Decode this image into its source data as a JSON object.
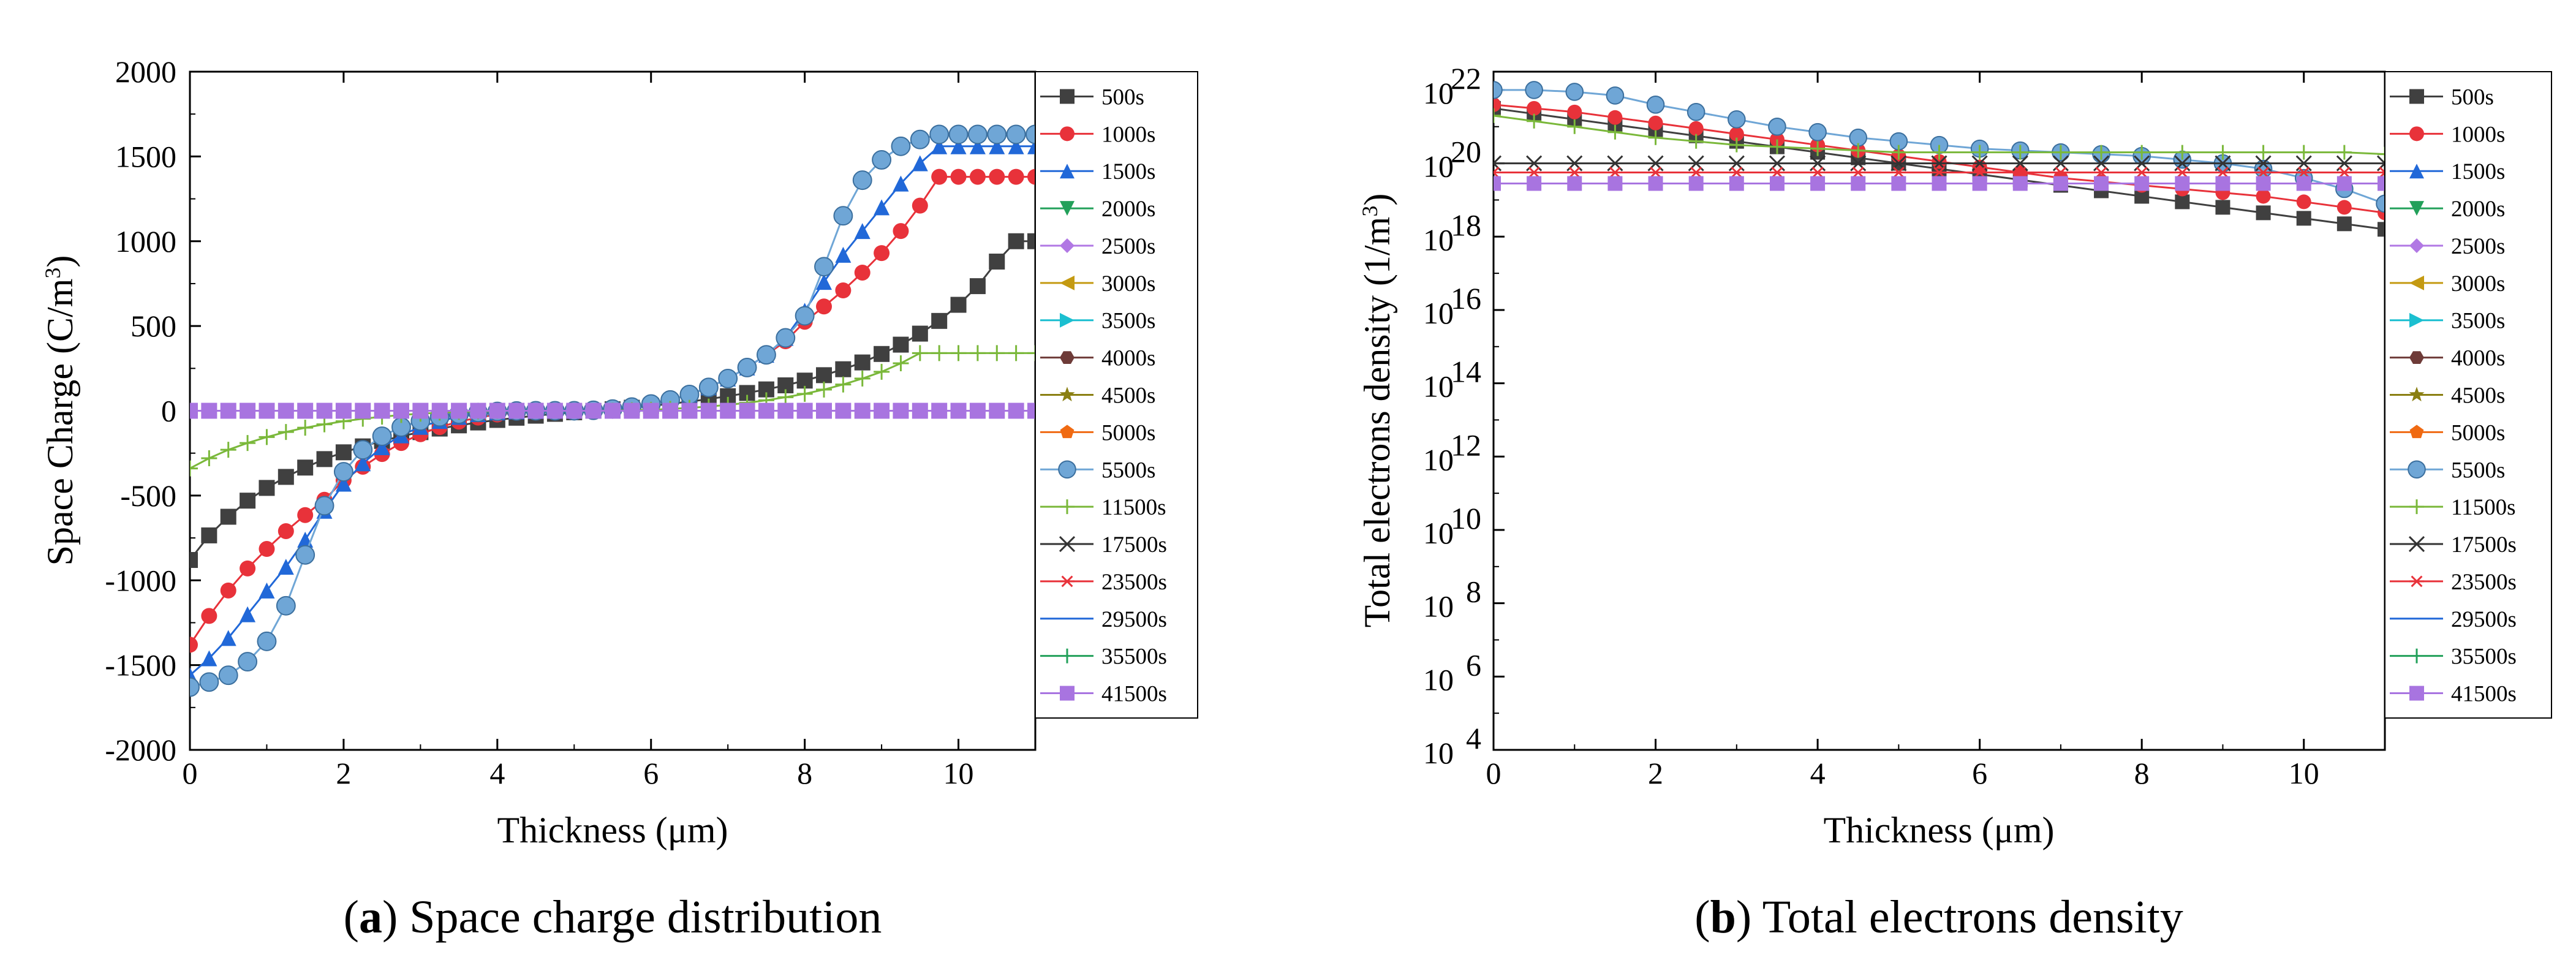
{
  "figure": {
    "panels": [
      {
        "id": "a",
        "caption_letter": "a",
        "caption_text": "Space charge distribution",
        "xlabel": "Thickness (μm)",
        "ylabel_main": "Space Charge (C/m",
        "ylabel_sup": "3",
        "ylabel_close": ")"
      },
      {
        "id": "b",
        "caption_letter": "b",
        "caption_text": "Total electrons density",
        "xlabel": "Thickness (μm)",
        "ylabel_main": "Total electrons density (1/m",
        "ylabel_sup": "3",
        "ylabel_close": ")"
      }
    ]
  },
  "series_styles": [
    {
      "name": "500s",
      "color": "#404040",
      "marker": "square"
    },
    {
      "name": "1000s",
      "color": "#e8323a",
      "marker": "circle"
    },
    {
      "name": "1500s",
      "color": "#2168d8",
      "marker": "triangle-up"
    },
    {
      "name": "2000s",
      "color": "#22a05a",
      "marker": "triangle-down"
    },
    {
      "name": "2500s",
      "color": "#b178e4",
      "marker": "diamond"
    },
    {
      "name": "3000s",
      "color": "#c49a12",
      "marker": "triangle-left"
    },
    {
      "name": "3500s",
      "color": "#1bbfd0",
      "marker": "triangle-right"
    },
    {
      "name": "4000s",
      "color": "#6e3b38",
      "marker": "hexagon"
    },
    {
      "name": "4500s",
      "color": "#8a7f12",
      "marker": "star"
    },
    {
      "name": "5000s",
      "color": "#f06a12",
      "marker": "pentagon"
    },
    {
      "name": "5500s",
      "color": "#6fa6d6",
      "marker": "sphere"
    },
    {
      "name": "11500s",
      "color": "#7ab83a",
      "marker": "plus"
    },
    {
      "name": "17500s",
      "color": "#333333",
      "marker": "x"
    },
    {
      "name": "23500s",
      "color": "#e8323a",
      "marker": "asterisk"
    },
    {
      "name": "29500s",
      "color": "#2168d8",
      "marker": "dash"
    },
    {
      "name": "35500s",
      "color": "#22a05a",
      "marker": "bar"
    },
    {
      "name": "41500s",
      "color": "#a874e0",
      "marker": "square"
    }
  ],
  "chart_data": [
    {
      "type": "line",
      "panel": "a",
      "title": "Space charge distribution",
      "xlabel": "Thickness (μm)",
      "ylabel": "Space Charge (C/m3)",
      "xlim": [
        0,
        11
      ],
      "ylim": [
        -2000,
        2000
      ],
      "xticks": [
        0,
        2,
        4,
        6,
        8,
        10
      ],
      "yticks": [
        2000,
        1500,
        1000,
        500,
        0,
        -500,
        -1000,
        -1500,
        -2000
      ],
      "ytick_labels": [
        "2000",
        "1500",
        "1000",
        "500",
        "0",
        "-500",
        "-1000",
        "-1500",
        "-2000"
      ],
      "x": [
        0,
        0.25,
        0.5,
        0.75,
        1,
        1.25,
        1.5,
        1.75,
        2,
        2.25,
        2.5,
        2.75,
        3,
        3.25,
        3.5,
        3.75,
        4,
        4.25,
        4.5,
        4.75,
        5,
        5.25,
        5.5,
        5.75,
        6,
        6.25,
        6.5,
        6.75,
        7,
        7.25,
        7.5,
        7.75,
        8,
        8.25,
        8.5,
        8.75,
        9,
        9.25,
        9.5,
        9.75,
        10,
        10.25,
        10.5,
        10.75,
        11
      ],
      "series": [
        {
          "name": "500s",
          "values": [
            -880,
            -735,
            -625,
            -530,
            -455,
            -390,
            -335,
            -285,
            -245,
            -210,
            -178,
            -150,
            -126,
            -105,
            -86,
            -69,
            -54,
            -41,
            -29,
            -18,
            -9,
            0,
            9,
            18,
            29,
            41,
            54,
            69,
            86,
            105,
            126,
            150,
            178,
            210,
            245,
            285,
            335,
            390,
            455,
            530,
            625,
            735,
            880,
            1000,
            1000
          ]
        },
        {
          "name": "1000s",
          "values": [
            -1380,
            -1210,
            -1060,
            -930,
            -815,
            -710,
            -615,
            -525,
            -410,
            -330,
            -255,
            -190,
            -138,
            -96,
            -64,
            -40,
            -22,
            -10,
            -4,
            -1,
            0,
            3,
            10,
            22,
            40,
            64,
            96,
            138,
            190,
            255,
            330,
            410,
            525,
            615,
            710,
            815,
            930,
            1060,
            1210,
            1380,
            1380,
            1380,
            1380,
            1380,
            1380
          ]
        },
        {
          "name": "1500s",
          "values": [
            -1560,
            -1460,
            -1340,
            -1200,
            -1060,
            -920,
            -760,
            -590,
            -430,
            -310,
            -215,
            -145,
            -95,
            -60,
            -36,
            -20,
            -10,
            -4,
            -1,
            0,
            0,
            3,
            10,
            22,
            40,
            64,
            96,
            138,
            190,
            255,
            330,
            430,
            590,
            760,
            920,
            1060,
            1200,
            1340,
            1460,
            1560,
            1560,
            1560,
            1560,
            1560,
            1560
          ]
        },
        {
          "name": "5500s",
          "values": [
            -1630,
            -1600,
            -1560,
            -1480,
            -1360,
            -1150,
            -850,
            -560,
            -360,
            -230,
            -150,
            -96,
            -60,
            -36,
            -20,
            -10,
            -4,
            -1,
            0,
            0,
            0,
            3,
            10,
            22,
            40,
            64,
            96,
            138,
            190,
            255,
            330,
            430,
            560,
            850,
            1150,
            1360,
            1480,
            1560,
            1600,
            1630,
            1630,
            1630,
            1630,
            1630,
            1630
          ]
        },
        {
          "name": "11500s",
          "values": [
            -340,
            -280,
            -230,
            -190,
            -155,
            -125,
            -100,
            -80,
            -62,
            -47,
            -35,
            -25,
            -17,
            -11,
            -6,
            -3,
            -1,
            0,
            0,
            0,
            0,
            0,
            1,
            3,
            6,
            11,
            17,
            25,
            35,
            47,
            62,
            80,
            100,
            125,
            155,
            190,
            230,
            280,
            340,
            340,
            340,
            340,
            340,
            340,
            340
          ]
        },
        {
          "name": "41500s",
          "values": [
            0,
            0,
            0,
            0,
            0,
            0,
            0,
            0,
            0,
            0,
            0,
            0,
            0,
            0,
            0,
            0,
            0,
            0,
            0,
            0,
            0,
            0,
            0,
            0,
            0,
            0,
            0,
            0,
            0,
            0,
            0,
            0,
            0,
            0,
            0,
            0,
            0,
            0,
            0,
            0,
            0,
            0,
            0,
            0,
            0
          ]
        }
      ],
      "legend": [
        "500s",
        "1000s",
        "1500s",
        "2000s",
        "2500s",
        "3000s",
        "3500s",
        "4000s",
        "4500s",
        "5000s",
        "5500s",
        "11500s",
        "17500s",
        "23500s",
        "29500s",
        "35500s",
        "41500s"
      ],
      "legend_position": "right"
    },
    {
      "type": "line",
      "panel": "b",
      "title": "Total electrons density",
      "xlabel": "Thickness (μm)",
      "ylabel": "Total electrons density (1/m3)",
      "xlim": [
        0,
        11
      ],
      "ylim": [
        4,
        22.5
      ],
      "yscale": "log10",
      "xticks": [
        0,
        2,
        4,
        6,
        8,
        10
      ],
      "ytick_exponents": [
        22,
        20,
        18,
        16,
        14,
        12,
        10,
        8,
        6,
        4
      ],
      "ytick_base": "10",
      "x": [
        0,
        0.5,
        1,
        1.5,
        2,
        2.5,
        3,
        3.5,
        4,
        4.5,
        5,
        5.5,
        6,
        6.5,
        7,
        7.5,
        8,
        8.5,
        9,
        9.5,
        10,
        10.5,
        11
      ],
      "series": [
        {
          "name": "500s",
          "log10_values": [
            21.5,
            21.35,
            21.2,
            21.05,
            20.9,
            20.75,
            20.6,
            20.45,
            20.3,
            20.15,
            20.0,
            19.85,
            19.7,
            19.55,
            19.4,
            19.25,
            19.1,
            18.95,
            18.8,
            18.65,
            18.5,
            18.35,
            18.2
          ]
        },
        {
          "name": "1000s",
          "log10_values": [
            21.6,
            21.5,
            21.4,
            21.25,
            21.1,
            20.95,
            20.8,
            20.65,
            20.5,
            20.35,
            20.2,
            20.05,
            19.9,
            19.75,
            19.6,
            19.5,
            19.4,
            19.3,
            19.2,
            19.1,
            18.95,
            18.8,
            18.65
          ]
        },
        {
          "name": "5500s",
          "log10_values": [
            22.0,
            22.0,
            21.95,
            21.85,
            21.6,
            21.4,
            21.2,
            21.0,
            20.85,
            20.7,
            20.6,
            20.5,
            20.4,
            20.35,
            20.3,
            20.25,
            20.2,
            20.1,
            20.0,
            19.85,
            19.6,
            19.3,
            18.9
          ]
        },
        {
          "name": "11500s",
          "log10_values": [
            21.3,
            21.15,
            21.0,
            20.85,
            20.7,
            20.6,
            20.5,
            20.45,
            20.4,
            20.35,
            20.3,
            20.3,
            20.3,
            20.3,
            20.3,
            20.3,
            20.3,
            20.3,
            20.3,
            20.3,
            20.3,
            20.3,
            20.25
          ]
        },
        {
          "name": "17500s",
          "log10_values": [
            20.0,
            20.0,
            20.0,
            20.0,
            20.0,
            20.0,
            20.0,
            20.0,
            20.0,
            20.0,
            20.0,
            20.0,
            20.0,
            20.0,
            20.0,
            20.0,
            20.0,
            20.0,
            20.0,
            20.0,
            20.0,
            20.0,
            20.0
          ]
        },
        {
          "name": "23500s",
          "log10_values": [
            19.75,
            19.75,
            19.75,
            19.75,
            19.75,
            19.75,
            19.75,
            19.75,
            19.75,
            19.75,
            19.75,
            19.75,
            19.75,
            19.75,
            19.75,
            19.75,
            19.75,
            19.75,
            19.75,
            19.75,
            19.75,
            19.75,
            19.75
          ]
        },
        {
          "name": "41500s",
          "log10_values": [
            19.45,
            19.45,
            19.45,
            19.45,
            19.45,
            19.45,
            19.45,
            19.45,
            19.45,
            19.45,
            19.45,
            19.45,
            19.45,
            19.45,
            19.45,
            19.45,
            19.45,
            19.45,
            19.45,
            19.45,
            19.45,
            19.45,
            19.45
          ]
        }
      ],
      "legend": [
        "500s",
        "1000s",
        "1500s",
        "2000s",
        "2500s",
        "3000s",
        "3500s",
        "4000s",
        "4500s",
        "5000s",
        "5500s",
        "11500s",
        "17500s",
        "23500s",
        "29500s",
        "35500s",
        "41500s"
      ],
      "legend_position": "right"
    }
  ]
}
